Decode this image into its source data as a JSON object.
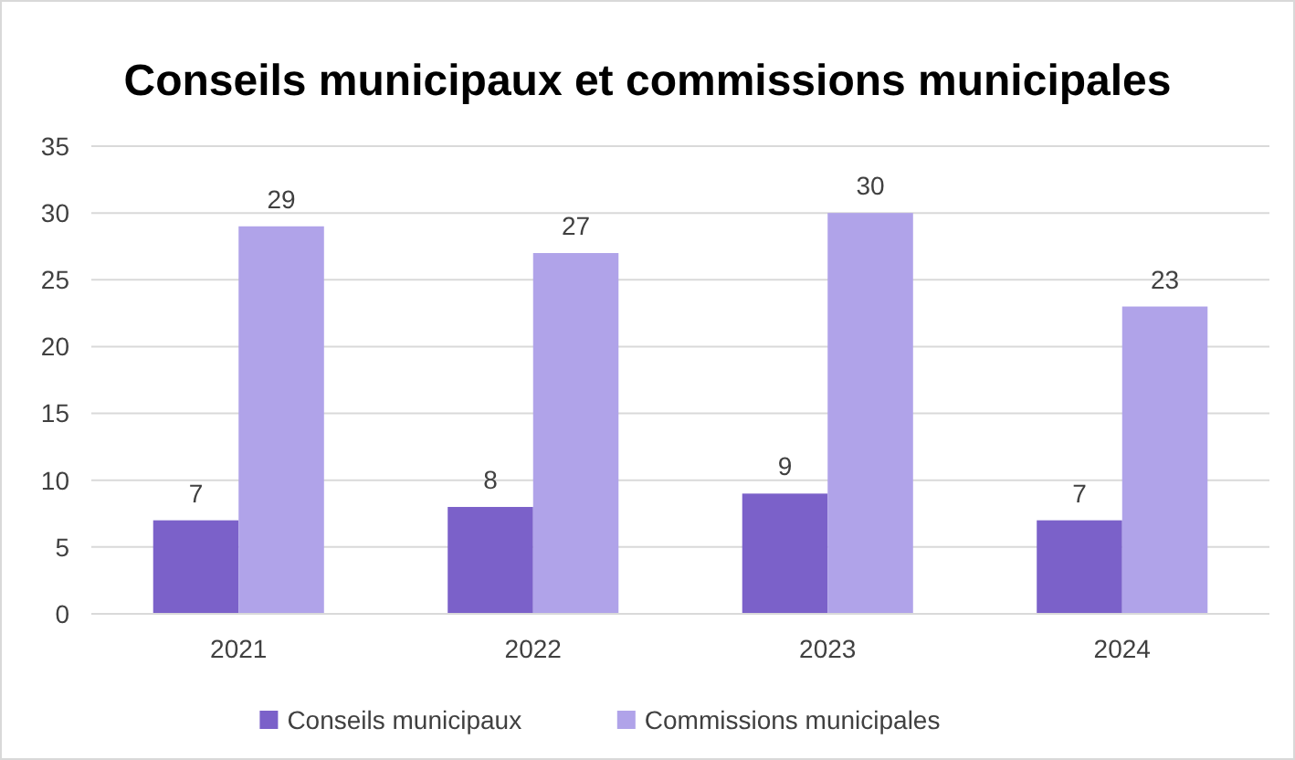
{
  "chart_data": {
    "type": "bar",
    "title": "Conseils municipaux et commissions municipales",
    "categories": [
      "2021",
      "2022",
      "2023",
      "2024"
    ],
    "series": [
      {
        "name": "Conseils municipaux",
        "color": "#7b61c9",
        "values": [
          7,
          8,
          9,
          7
        ]
      },
      {
        "name": "Commissions municipales",
        "color": "#b0a3e9",
        "values": [
          29,
          27,
          30,
          23
        ]
      }
    ],
    "ylim": [
      0,
      35
    ],
    "yticks": [
      0,
      5,
      10,
      15,
      20,
      25,
      30,
      35
    ],
    "grid": "y",
    "legend": "bottom",
    "data_labels": true
  }
}
